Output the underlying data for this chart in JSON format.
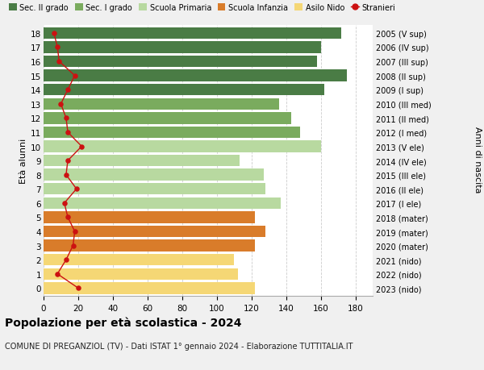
{
  "ages": [
    18,
    17,
    16,
    15,
    14,
    13,
    12,
    11,
    10,
    9,
    8,
    7,
    6,
    5,
    4,
    3,
    2,
    1,
    0
  ],
  "right_labels": [
    "2005 (V sup)",
    "2006 (IV sup)",
    "2007 (III sup)",
    "2008 (II sup)",
    "2009 (I sup)",
    "2010 (III med)",
    "2011 (II med)",
    "2012 (I med)",
    "2013 (V ele)",
    "2014 (IV ele)",
    "2015 (III ele)",
    "2016 (II ele)",
    "2017 (I ele)",
    "2018 (mater)",
    "2019 (mater)",
    "2020 (mater)",
    "2021 (nido)",
    "2022 (nido)",
    "2023 (nido)"
  ],
  "bar_values": [
    172,
    160,
    158,
    175,
    162,
    136,
    143,
    148,
    160,
    113,
    127,
    128,
    137,
    122,
    128,
    122,
    110,
    112,
    122
  ],
  "bar_colors": [
    "#4a7c45",
    "#4a7c45",
    "#4a7c45",
    "#4a7c45",
    "#4a7c45",
    "#7aab5e",
    "#7aab5e",
    "#7aab5e",
    "#b8d9a0",
    "#b8d9a0",
    "#b8d9a0",
    "#b8d9a0",
    "#b8d9a0",
    "#d97c2a",
    "#d97c2a",
    "#d97c2a",
    "#f5d775",
    "#f5d775",
    "#f5d775"
  ],
  "stranieri_ages": [
    18,
    17,
    16,
    15,
    14,
    13,
    12,
    11,
    10,
    9,
    8,
    7,
    6,
    5,
    4,
    3,
    2,
    1,
    0
  ],
  "stranieri_vals": [
    6,
    8,
    9,
    18,
    14,
    10,
    13,
    14,
    22,
    14,
    13,
    19,
    12,
    14,
    18,
    17,
    13,
    8,
    20
  ],
  "legend_labels": [
    "Sec. II grado",
    "Sec. I grado",
    "Scuola Primaria",
    "Scuola Infanzia",
    "Asilo Nido",
    "Stranieri"
  ],
  "legend_colors": [
    "#4a7c45",
    "#7aab5e",
    "#b8d9a0",
    "#d97c2a",
    "#f5d775",
    "#cc1111"
  ],
  "title": "Popolazione per età scolastica - 2024",
  "subtitle": "COMUNE DI PREGANZIOL (TV) - Dati ISTAT 1° gennaio 2024 - Elaborazione TUTTITALIA.IT",
  "ylabel_left": "Età alunni",
  "ylabel_right": "Anni di nascita",
  "xlim": [
    0,
    190
  ],
  "xticks": [
    0,
    20,
    40,
    60,
    80,
    100,
    120,
    140,
    160,
    180
  ],
  "bg_color": "#f0f0f0",
  "plot_bg": "#ffffff"
}
